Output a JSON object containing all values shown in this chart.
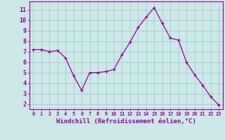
{
  "x": [
    0,
    1,
    2,
    3,
    4,
    5,
    6,
    7,
    8,
    9,
    10,
    11,
    12,
    13,
    14,
    15,
    16,
    17,
    18,
    19,
    20,
    21,
    22,
    23
  ],
  "y": [
    7.2,
    7.2,
    7.0,
    7.1,
    6.4,
    4.7,
    3.3,
    5.0,
    5.0,
    5.1,
    5.3,
    6.7,
    7.9,
    9.3,
    10.3,
    11.2,
    9.7,
    8.3,
    8.1,
    6.0,
    4.8,
    3.8,
    2.7,
    1.9
  ],
  "line_color": "#990099",
  "marker_color": "#990099",
  "bg_color": "#cce8e8",
  "grid_color": "#aacfcf",
  "xlabel": "Windchill (Refroidissement éolien,°C)",
  "xlabel_color": "#990099",
  "tick_color": "#990099",
  "ylim": [
    1.5,
    11.8
  ],
  "xlim": [
    -0.5,
    23.5
  ],
  "yticks": [
    2,
    3,
    4,
    5,
    6,
    7,
    8,
    9,
    10,
    11
  ],
  "xticks": [
    0,
    1,
    2,
    3,
    4,
    5,
    6,
    7,
    8,
    9,
    10,
    11,
    12,
    13,
    14,
    15,
    16,
    17,
    18,
    19,
    20,
    21,
    22,
    23
  ],
  "xtick_labels": [
    "0",
    "1",
    "2",
    "3",
    "4",
    "5",
    "6",
    "7",
    "8",
    "9",
    "10",
    "11",
    "12",
    "13",
    "14",
    "15",
    "16",
    "17",
    "18",
    "19",
    "20",
    "21",
    "22",
    "23"
  ],
  "spine_color": "#990099"
}
